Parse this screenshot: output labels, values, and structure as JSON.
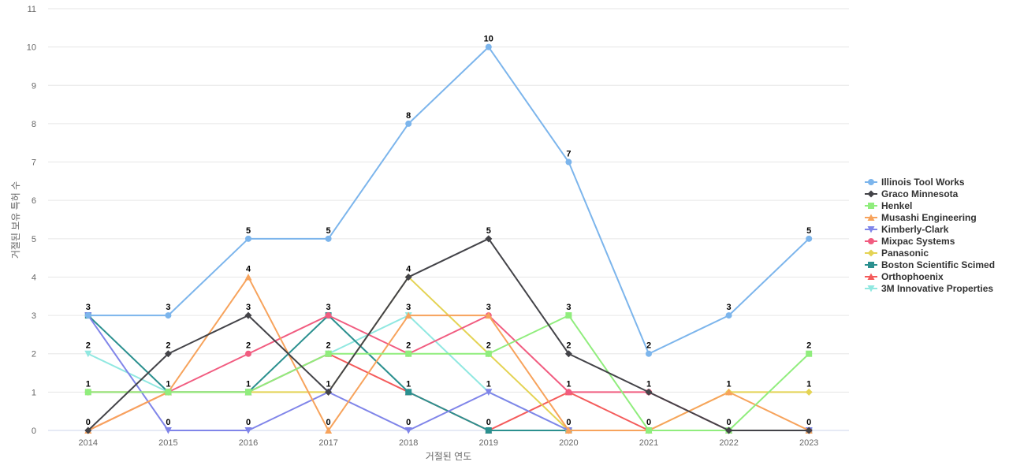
{
  "chart_data": {
    "type": "line",
    "title": "",
    "xlabel": "거절된 연도",
    "ylabel": "거절된 보유 특허 수",
    "x": [
      "2014",
      "2015",
      "2016",
      "2017",
      "2018",
      "2019",
      "2020",
      "2021",
      "2022",
      "2023"
    ],
    "ylim": [
      0,
      11
    ],
    "yticks": [
      0,
      1,
      2,
      3,
      4,
      5,
      6,
      7,
      8,
      9,
      10,
      11
    ],
    "grid": true,
    "legend_position": "right",
    "series": [
      {
        "name": "Illinois Tool Works",
        "color": "#7cb5ec",
        "marker": "circle",
        "values": [
          3,
          3,
          5,
          5,
          8,
          10,
          7,
          2,
          3,
          5
        ]
      },
      {
        "name": "Graco Minnesota",
        "color": "#434348",
        "marker": "diamond",
        "values": [
          0,
          2,
          3,
          1,
          4,
          5,
          2,
          1,
          0,
          0
        ]
      },
      {
        "name": "Henkel",
        "color": "#90ed7d",
        "marker": "square",
        "values": [
          1,
          1,
          1,
          2,
          2,
          2,
          3,
          0,
          0,
          2
        ]
      },
      {
        "name": "Musashi Engineering",
        "color": "#f7a35c",
        "marker": "triangle",
        "values": [
          0,
          1,
          4,
          0,
          3,
          3,
          0,
          0,
          1,
          0
        ]
      },
      {
        "name": "Kimberly-Clark",
        "color": "#8085e9",
        "marker": "triangle-down",
        "values": [
          3,
          0,
          0,
          1,
          0,
          1,
          0,
          0,
          0,
          0
        ]
      },
      {
        "name": "Mixpac Systems",
        "color": "#f15c80",
        "marker": "circle",
        "values": [
          1,
          1,
          2,
          3,
          2,
          3,
          1,
          1,
          0,
          0
        ]
      },
      {
        "name": "Panasonic",
        "color": "#e4d354",
        "marker": "diamond",
        "values": [
          1,
          1,
          1,
          1,
          4,
          2,
          0,
          0,
          1,
          1
        ]
      },
      {
        "name": "Boston Scientific Scimed",
        "color": "#2b908f",
        "marker": "square",
        "values": [
          3,
          1,
          1,
          3,
          1,
          0,
          0,
          0,
          0,
          0
        ]
      },
      {
        "name": "Orthophoenix",
        "color": "#f45b5b",
        "marker": "triangle",
        "values": [
          0,
          1,
          1,
          2,
          1,
          0,
          1,
          0,
          0,
          0
        ]
      },
      {
        "name": "3M Innovative Properties",
        "color": "#91e8e1",
        "marker": "triangle-down",
        "values": [
          2,
          1,
          1,
          2,
          3,
          1,
          0,
          0,
          0,
          0
        ]
      }
    ],
    "data_labels": [
      {
        "x": "2014",
        "y": 3,
        "text": "3"
      },
      {
        "x": "2014",
        "y": 2,
        "text": "2"
      },
      {
        "x": "2014",
        "y": 1,
        "text": "1"
      },
      {
        "x": "2014",
        "y": 0,
        "text": "0"
      },
      {
        "x": "2015",
        "y": 3,
        "text": "3"
      },
      {
        "x": "2015",
        "y": 2,
        "text": "2"
      },
      {
        "x": "2015",
        "y": 1,
        "text": "1"
      },
      {
        "x": "2015",
        "y": 0,
        "text": "0"
      },
      {
        "x": "2016",
        "y": 5,
        "text": "5"
      },
      {
        "x": "2016",
        "y": 4,
        "text": "4"
      },
      {
        "x": "2016",
        "y": 3,
        "text": "3"
      },
      {
        "x": "2016",
        "y": 2,
        "text": "2"
      },
      {
        "x": "2016",
        "y": 1,
        "text": "1"
      },
      {
        "x": "2016",
        "y": 0,
        "text": "0"
      },
      {
        "x": "2017",
        "y": 5,
        "text": "5"
      },
      {
        "x": "2017",
        "y": 3,
        "text": "3"
      },
      {
        "x": "2017",
        "y": 2,
        "text": "2"
      },
      {
        "x": "2017",
        "y": 1,
        "text": "1"
      },
      {
        "x": "2017",
        "y": 0,
        "text": "0"
      },
      {
        "x": "2018",
        "y": 8,
        "text": "8"
      },
      {
        "x": "2018",
        "y": 4,
        "text": "4"
      },
      {
        "x": "2018",
        "y": 3,
        "text": "3"
      },
      {
        "x": "2018",
        "y": 2,
        "text": "2"
      },
      {
        "x": "2018",
        "y": 1,
        "text": "1"
      },
      {
        "x": "2018",
        "y": 0,
        "text": "0"
      },
      {
        "x": "2019",
        "y": 10,
        "text": "10"
      },
      {
        "x": "2019",
        "y": 5,
        "text": "5"
      },
      {
        "x": "2019",
        "y": 3,
        "text": "3"
      },
      {
        "x": "2019",
        "y": 2,
        "text": "2"
      },
      {
        "x": "2019",
        "y": 1,
        "text": "1"
      },
      {
        "x": "2019",
        "y": 0,
        "text": "0"
      },
      {
        "x": "2020",
        "y": 7,
        "text": "7"
      },
      {
        "x": "2020",
        "y": 3,
        "text": "3"
      },
      {
        "x": "2020",
        "y": 2,
        "text": "2"
      },
      {
        "x": "2020",
        "y": 1,
        "text": "1"
      },
      {
        "x": "2020",
        "y": 0,
        "text": "0"
      },
      {
        "x": "2021",
        "y": 2,
        "text": "2"
      },
      {
        "x": "2021",
        "y": 1,
        "text": "1"
      },
      {
        "x": "2021",
        "y": 0,
        "text": "0"
      },
      {
        "x": "2022",
        "y": 3,
        "text": "3"
      },
      {
        "x": "2022",
        "y": 1,
        "text": "1"
      },
      {
        "x": "2022",
        "y": 0,
        "text": "0"
      },
      {
        "x": "2023",
        "y": 5,
        "text": "5"
      },
      {
        "x": "2023",
        "y": 2,
        "text": "2"
      },
      {
        "x": "2023",
        "y": 1,
        "text": "1"
      },
      {
        "x": "2023",
        "y": 0,
        "text": "0"
      }
    ]
  }
}
